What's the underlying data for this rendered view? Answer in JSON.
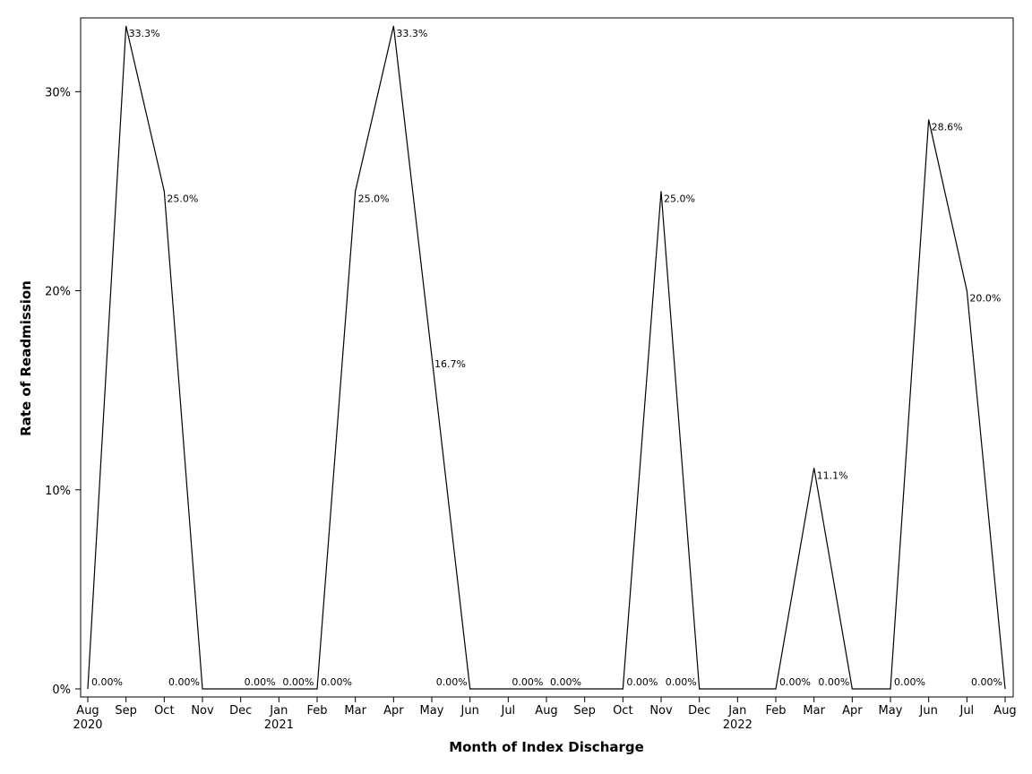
{
  "chart_data": {
    "type": "line",
    "xlabel": "Month of Index Discharge",
    "ylabel": "Rate of Readmission",
    "ylim": [
      0,
      0.333
    ],
    "yticks": [
      {
        "value": 0,
        "label": "0%"
      },
      {
        "value": 0.1,
        "label": "10%"
      },
      {
        "value": 0.2,
        "label": "20%"
      },
      {
        "value": 0.3,
        "label": "30%"
      }
    ],
    "grid": false,
    "legend": "none",
    "line_color": "#000000",
    "points": [
      {
        "month": "Aug",
        "year": "2020",
        "value": 0.0,
        "label": "0.00%"
      },
      {
        "month": "Sep",
        "year": "",
        "value": 0.333,
        "label": "33.3%"
      },
      {
        "month": "Oct",
        "year": "",
        "value": 0.25,
        "label": "25.0%"
      },
      {
        "month": "Nov",
        "year": "",
        "value": 0.0,
        "label": "0.00%"
      },
      {
        "month": "Dec",
        "year": "",
        "value": 0.0,
        "label": "0.00%"
      },
      {
        "month": "Jan",
        "year": "2021",
        "value": 0.0,
        "label": "0.00%"
      },
      {
        "month": "Feb",
        "year": "",
        "value": 0.0,
        "label": "0.00%"
      },
      {
        "month": "Mar",
        "year": "",
        "value": 0.25,
        "label": "25.0%"
      },
      {
        "month": "Apr",
        "year": "",
        "value": 0.333,
        "label": "33.3%"
      },
      {
        "month": "May",
        "year": "",
        "value": 0.167,
        "label": "16.7%"
      },
      {
        "month": "Jun",
        "year": "",
        "value": 0.0,
        "label": "0.00%"
      },
      {
        "month": "Jul",
        "year": "",
        "value": 0.0,
        "label": "0.00%"
      },
      {
        "month": "Aug",
        "year": "",
        "value": 0.0,
        "label": "0.00%"
      },
      {
        "month": "Sep",
        "year": "",
        "value": 0.0,
        "label": ""
      },
      {
        "month": "Oct",
        "year": "",
        "value": 0.0,
        "label": "0.00%"
      },
      {
        "month": "Nov",
        "year": "",
        "value": 0.25,
        "label": "25.0%"
      },
      {
        "month": "Dec",
        "year": "",
        "value": 0.0,
        "label": "0.00%"
      },
      {
        "month": "Jan",
        "year": "2022",
        "value": 0.0,
        "label": ""
      },
      {
        "month": "Feb",
        "year": "",
        "value": 0.0,
        "label": "0.00%"
      },
      {
        "month": "Mar",
        "year": "",
        "value": 0.111,
        "label": "11.1%"
      },
      {
        "month": "Apr",
        "year": "",
        "value": 0.0,
        "label": "0.00%"
      },
      {
        "month": "May",
        "year": "",
        "value": 0.0,
        "label": "0.00%"
      },
      {
        "month": "Jun",
        "year": "",
        "value": 0.286,
        "label": "28.6%"
      },
      {
        "month": "Jul",
        "year": "",
        "value": 0.2,
        "label": "20.0%"
      },
      {
        "month": "Aug",
        "year": "",
        "value": 0.0,
        "label": "0.00%"
      }
    ]
  }
}
